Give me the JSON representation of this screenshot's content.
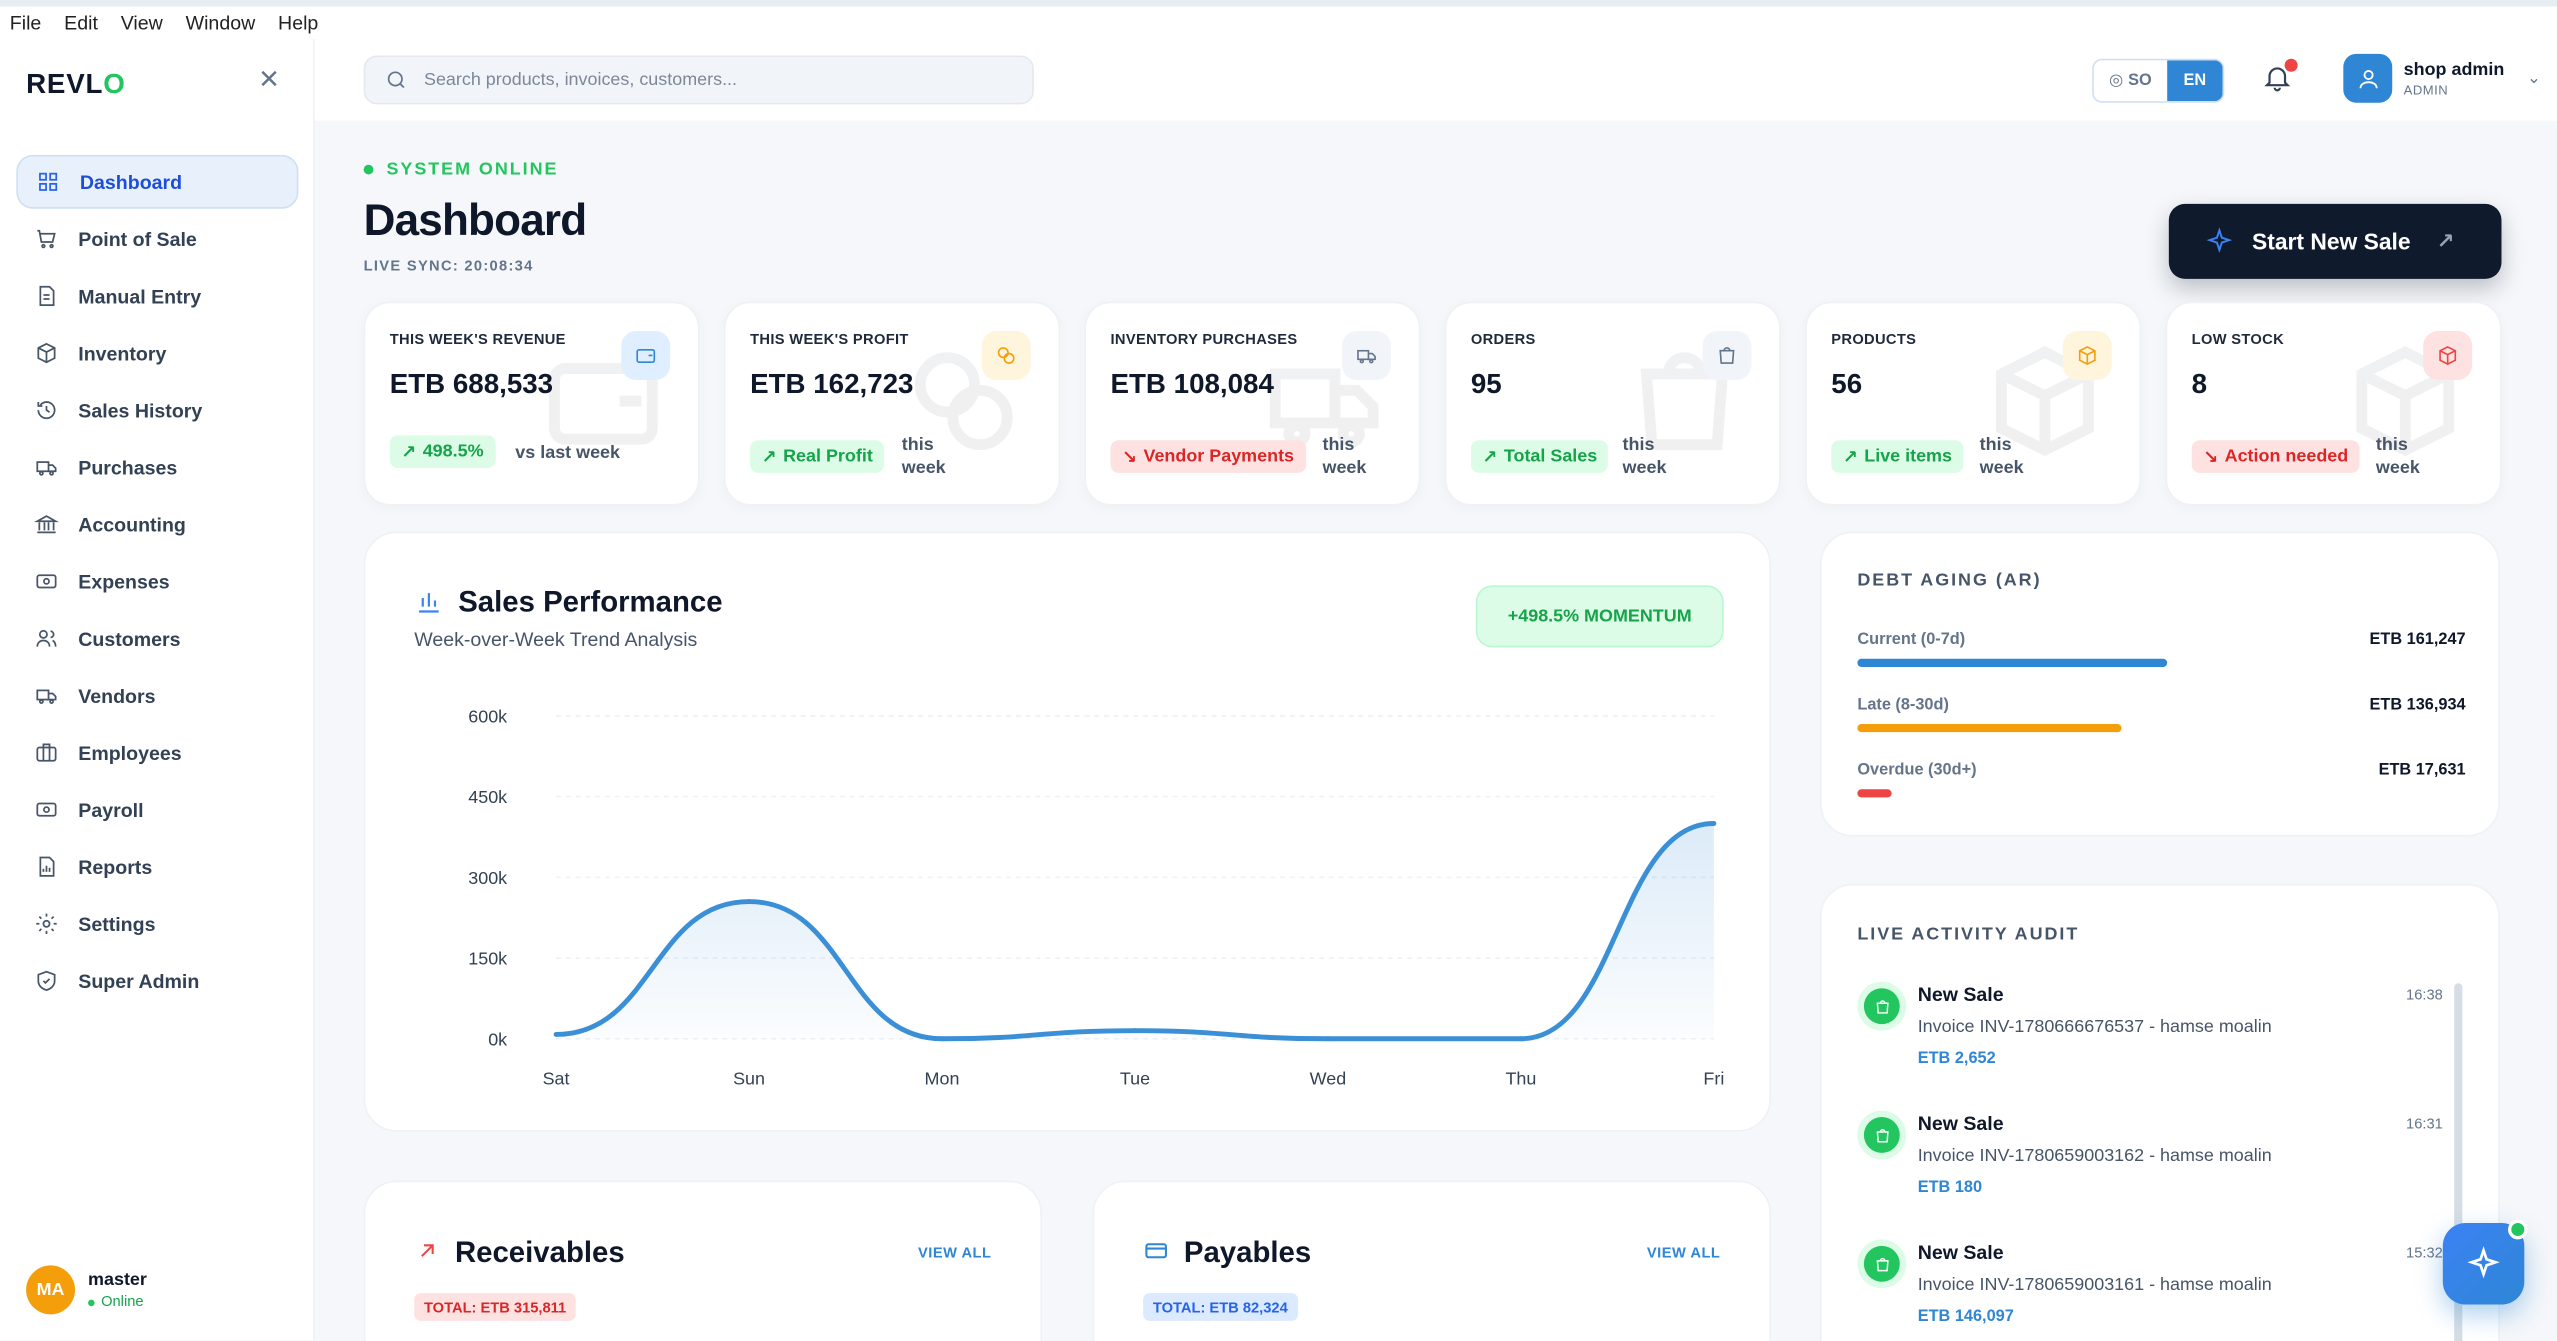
{
  "menubar": [
    "File",
    "Edit",
    "View",
    "Window",
    "Help"
  ],
  "brand": {
    "name_a": "REVL",
    "name_b": "O"
  },
  "sidebar": {
    "items": [
      {
        "label": "Dashboard",
        "icon": "grid-icon",
        "active": true
      },
      {
        "label": "Point of Sale",
        "icon": "cart-icon"
      },
      {
        "label": "Manual Entry",
        "icon": "document-icon"
      },
      {
        "label": "Inventory",
        "icon": "box-icon"
      },
      {
        "label": "Sales History",
        "icon": "history-icon"
      },
      {
        "label": "Purchases",
        "icon": "truck-icon"
      },
      {
        "label": "Accounting",
        "icon": "bank-icon"
      },
      {
        "label": "Expenses",
        "icon": "banknote-icon"
      },
      {
        "label": "Customers",
        "icon": "users-icon"
      },
      {
        "label": "Vendors",
        "icon": "truck-icon"
      },
      {
        "label": "Employees",
        "icon": "briefcase-icon"
      },
      {
        "label": "Payroll",
        "icon": "banknote-icon"
      },
      {
        "label": "Reports",
        "icon": "report-icon"
      },
      {
        "label": "Settings",
        "icon": "gear-icon"
      },
      {
        "label": "Super Admin",
        "icon": "shield-icon"
      }
    ],
    "user": {
      "initials": "MA",
      "name": "master",
      "status": "Online"
    }
  },
  "header": {
    "search_placeholder": "Search products, invoices, customers...",
    "lang_so": "SO",
    "lang_en": "EN",
    "user_name": "shop admin",
    "user_role": "ADMIN"
  },
  "page": {
    "status": "SYSTEM ONLINE",
    "title": "Dashboard",
    "sync": "LIVE SYNC: 20:08:34",
    "start_sale": "Start New Sale"
  },
  "stats": [
    {
      "label": "THIS WEEK'S REVENUE",
      "value": "ETB 688,533",
      "badge": "498.5%",
      "badge_color": "green",
      "sub": "vs last week",
      "accent": "#2e86d4"
    },
    {
      "label": "THIS WEEK'S PROFIT",
      "value": "ETB 162,723",
      "badge": "Real Profit",
      "badge_color": "green",
      "sub": "this week",
      "accent": "#f59e0b"
    },
    {
      "label": "INVENTORY PURCHASES",
      "value": "ETB 108,084",
      "badge": "Vendor Payments",
      "badge_color": "red",
      "sub": "this week",
      "accent": "#64748b"
    },
    {
      "label": "ORDERS",
      "value": "95",
      "badge": "Total Sales",
      "badge_color": "green",
      "sub": "this week",
      "accent": "#64748b"
    },
    {
      "label": "PRODUCTS",
      "value": "56",
      "badge": "Live items",
      "badge_color": "green",
      "sub": "this week",
      "accent": "#f59e0b"
    },
    {
      "label": "LOW STOCK",
      "value": "8",
      "badge": "Action needed",
      "badge_color": "red",
      "sub": "this week",
      "accent": "#ef4444"
    }
  ],
  "sales": {
    "title": "Sales Performance",
    "subtitle": "Week-over-Week Trend Analysis",
    "momentum": "+498.5% MOMENTUM"
  },
  "chart_data": {
    "type": "area",
    "categories": [
      "Sat",
      "Sun",
      "Mon",
      "Tue",
      "Wed",
      "Thu",
      "Fri"
    ],
    "values": [
      8000,
      255000,
      0,
      15000,
      0,
      0,
      400000
    ],
    "ylim": [
      0,
      600000
    ],
    "yticks": [
      "0k",
      "150k",
      "300k",
      "450k",
      "600k"
    ],
    "grid": true,
    "color": "#3b8fd6"
  },
  "debt": {
    "title": "DEBT AGING (AR)",
    "rows": [
      {
        "label": "Current (0-7d)",
        "value": "ETB 161,247",
        "amount": 161247,
        "color": "#2e86d4"
      },
      {
        "label": "Late (8-30d)",
        "value": "ETB 136,934",
        "amount": 136934,
        "color": "#f59e0b"
      },
      {
        "label": "Overdue (30d+)",
        "value": "ETB 17,631",
        "amount": 17631,
        "color": "#ef4444"
      }
    ]
  },
  "activity": {
    "title": "LIVE ACTIVITY AUDIT",
    "items": [
      {
        "title": "New Sale",
        "time": "16:38",
        "desc": "Invoice INV-1780666676537 - hamse moalin",
        "amount": "ETB 2,652"
      },
      {
        "title": "New Sale",
        "time": "16:31",
        "desc": "Invoice INV-1780659003162 - hamse moalin",
        "amount": "ETB 180"
      },
      {
        "title": "New Sale",
        "time": "15:32",
        "desc": "Invoice INV-1780659003161 - hamse moalin",
        "amount": "ETB 146,097"
      }
    ]
  },
  "receivables": {
    "title": "Receivables",
    "view_all": "VIEW ALL",
    "total": "TOTAL: ETB 315,811"
  },
  "payables": {
    "title": "Payables",
    "view_all": "VIEW ALL",
    "total": "TOTAL: ETB 82,324"
  }
}
